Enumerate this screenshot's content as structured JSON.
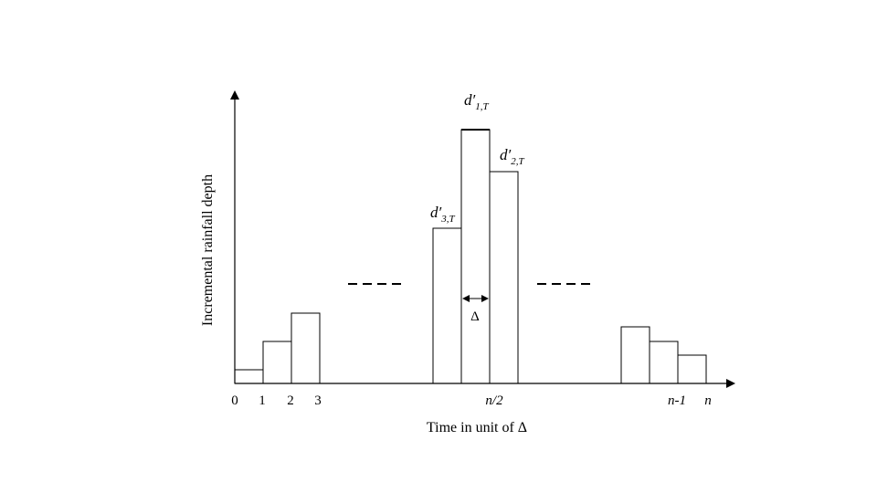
{
  "diagram": {
    "axis_labels": {
      "y": "Incremental rainfall depth",
      "x": "Time in unit of Δ"
    },
    "x_ticks": [
      "0",
      "1",
      "2",
      "3",
      "n/2",
      "n-1",
      "n"
    ],
    "bar_labels": {
      "first": {
        "main": "d′",
        "sub": "1,T"
      },
      "second": {
        "main": "d′",
        "sub": "2,T"
      },
      "third": {
        "main": "d′",
        "sub": "3,T"
      }
    },
    "interval_label": "Δ"
  }
}
